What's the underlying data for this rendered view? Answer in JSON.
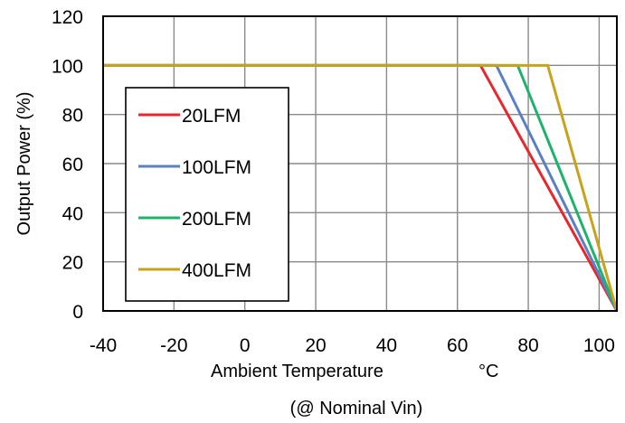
{
  "chart_data": {
    "type": "line",
    "xlabel": "Ambient Temperature",
    "xunit": "°C",
    "ylabel": "Output Power  (%)",
    "note": "(@ Nominal Vin)",
    "xlim": [
      -40,
      105
    ],
    "ylim": [
      0,
      120
    ],
    "xticks": [
      -40,
      -20,
      0,
      20,
      40,
      60,
      80,
      100
    ],
    "yticks": [
      0,
      20,
      40,
      60,
      80,
      100,
      120
    ],
    "grid": true,
    "legend_position": "left",
    "series": [
      {
        "name": "20LFM",
        "color": "#e8262c",
        "x": [
          -40,
          66.5,
          105
        ],
        "y": [
          100,
          100,
          0
        ]
      },
      {
        "name": "100LFM",
        "color": "#5b7fc4",
        "x": [
          -40,
          71,
          105
        ],
        "y": [
          100,
          100,
          0
        ]
      },
      {
        "name": "200LFM",
        "color": "#1db36a",
        "x": [
          -40,
          77,
          105
        ],
        "y": [
          100,
          100,
          0
        ]
      },
      {
        "name": "400LFM",
        "color": "#c9a21c",
        "x": [
          -40,
          85.5,
          105
        ],
        "y": [
          100,
          100,
          0
        ]
      }
    ]
  }
}
